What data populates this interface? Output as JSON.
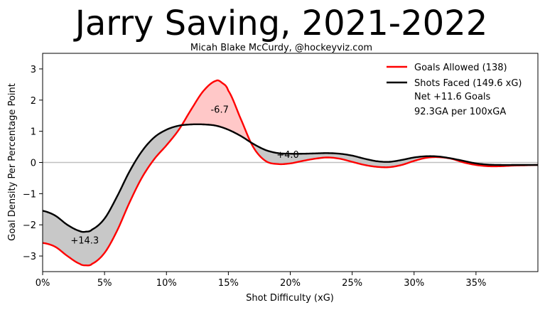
{
  "chart_data": {
    "type": "area",
    "title": "Jarry Saving, 2021-2022",
    "subtitle": "Micah Blake McCurdy, @hockeyviz.com",
    "xlabel": "Shot Difficulty (xG)",
    "ylabel": "Goal Density Per Percentage Point",
    "xlim": [
      0,
      40
    ],
    "ylim": [
      -3.5,
      3.5
    ],
    "x_ticks": [
      0,
      5,
      10,
      15,
      20,
      25,
      30,
      35
    ],
    "x_tick_labels": [
      "0%",
      "5%",
      "10%",
      "15%",
      "20%",
      "25%",
      "30%",
      "35%"
    ],
    "y_ticks": [
      -3,
      -2,
      -1,
      0,
      1,
      2,
      3
    ],
    "y_tick_labels": [
      "−3",
      "−2",
      "−1",
      "0",
      "1",
      "2",
      "3"
    ],
    "colors": {
      "goals": "#ff0000",
      "shots": "#000000",
      "fill_better": "#c8c8c8",
      "fill_worse": "#ffc8c8",
      "zero_line": "#c0c0c0"
    },
    "legend": {
      "position": "top-right",
      "entries": [
        "Goals Allowed (138)",
        "Shots Faced (149.6 xG)"
      ],
      "net": "Net +11.6 Goals",
      "rate": "92.3GA per 100xGA"
    },
    "annotations": [
      {
        "text": "+14.3",
        "x": 3.4,
        "y": -2.6
      },
      {
        "text": "-6.7",
        "x": 14.3,
        "y": 1.6
      },
      {
        "text": "+4.0",
        "x": 19.8,
        "y": 0.15
      }
    ],
    "series": [
      {
        "name": "Goals Allowed",
        "x": [
          0,
          1,
          2,
          3,
          3.5,
          4,
          5,
          6,
          7,
          8,
          9,
          10,
          11,
          12,
          13,
          14,
          14.5,
          15,
          16,
          17,
          18,
          19,
          20,
          21,
          22,
          23,
          24,
          25,
          26,
          27,
          28,
          29,
          30,
          31,
          32,
          33,
          34,
          35,
          36,
          37,
          38,
          39,
          40
        ],
        "values": [
          -2.58,
          -2.7,
          -3.0,
          -3.25,
          -3.3,
          -3.25,
          -2.9,
          -2.2,
          -1.3,
          -0.5,
          0.1,
          0.55,
          1.05,
          1.7,
          2.3,
          2.62,
          2.55,
          2.3,
          1.4,
          0.5,
          0.05,
          -0.05,
          -0.03,
          0.05,
          0.12,
          0.16,
          0.12,
          0.02,
          -0.08,
          -0.14,
          -0.15,
          -0.08,
          0.05,
          0.15,
          0.17,
          0.12,
          0.0,
          -0.08,
          -0.12,
          -0.12,
          -0.1,
          -0.09,
          -0.08
        ]
      },
      {
        "name": "Shots Faced",
        "x": [
          0,
          1,
          2,
          3,
          3.5,
          4,
          5,
          6,
          7,
          8,
          9,
          10,
          11,
          12,
          13,
          14,
          15,
          16,
          17,
          18,
          19,
          20,
          21,
          22,
          23,
          24,
          25,
          26,
          27,
          28,
          29,
          30,
          31,
          32,
          33,
          34,
          35,
          36,
          37,
          38,
          39,
          40
        ],
        "values": [
          -1.55,
          -1.7,
          -2.0,
          -2.2,
          -2.22,
          -2.15,
          -1.8,
          -1.1,
          -0.3,
          0.35,
          0.8,
          1.05,
          1.18,
          1.22,
          1.22,
          1.18,
          1.05,
          0.85,
          0.6,
          0.4,
          0.3,
          0.28,
          0.28,
          0.29,
          0.3,
          0.28,
          0.22,
          0.12,
          0.04,
          0.02,
          0.08,
          0.16,
          0.2,
          0.19,
          0.13,
          0.05,
          -0.03,
          -0.07,
          -0.08,
          -0.08,
          -0.08,
          -0.08
        ]
      }
    ]
  }
}
